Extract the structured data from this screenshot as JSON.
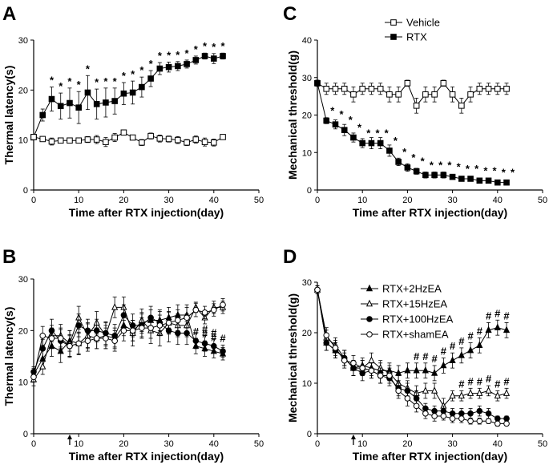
{
  "chart_data": [
    {
      "panel": "A",
      "type": "line",
      "xlabel": "Time after RTX injection(day)",
      "ylabel": "Thermal latency(s)",
      "xlim": [
        0,
        50
      ],
      "ylim": [
        0,
        30
      ],
      "xticks": [
        0,
        10,
        20,
        30,
        40,
        50
      ],
      "yticks": [
        0,
        10,
        20,
        30
      ],
      "legend": null,
      "arrow_at": null,
      "x": [
        0,
        2,
        4,
        6,
        8,
        10,
        12,
        14,
        16,
        18,
        20,
        22,
        24,
        26,
        28,
        30,
        32,
        34,
        36,
        38,
        40,
        42
      ],
      "series": [
        {
          "name": "RTX",
          "marker": "filled-square",
          "values": [
            10.6,
            15.0,
            18.2,
            16.8,
            17.4,
            16.5,
            19.5,
            17.2,
            17.5,
            17.8,
            19.3,
            19.5,
            20.6,
            22.3,
            24.3,
            24.6,
            24.8,
            25.2,
            26.0,
            26.8,
            26.3,
            26.8
          ],
          "errors": [
            0.5,
            1.2,
            2.4,
            2.6,
            3.0,
            3.2,
            3.4,
            3.0,
            2.9,
            2.6,
            2.2,
            2.3,
            2.0,
            1.6,
            1.2,
            1.0,
            0.9,
            0.8,
            0.8,
            0.6,
            1.0,
            0.6
          ]
        },
        {
          "name": "Vehicle",
          "marker": "open-square",
          "values": [
            10.6,
            10.2,
            9.7,
            9.9,
            9.9,
            9.9,
            10.1,
            10.1,
            9.6,
            10.5,
            11.5,
            10.5,
            9.5,
            10.8,
            10.3,
            10.2,
            10.0,
            9.5,
            10.1,
            9.6,
            9.5,
            10.6
          ],
          "errors": [
            0.4,
            0.5,
            0.7,
            0.5,
            0.5,
            0.4,
            0.6,
            0.8,
            0.9,
            0.8,
            0.5,
            0.5,
            0.6,
            0.6,
            0.7,
            0.6,
            0.7,
            0.6,
            0.7,
            0.8,
            0.7,
            0.5
          ]
        }
      ],
      "annotations": [
        {
          "symbol": "*",
          "series": "RTX",
          "x": [
            4,
            6,
            8,
            10,
            12,
            14,
            16,
            18,
            20,
            22,
            24,
            26,
            28,
            30,
            32,
            34,
            36,
            38,
            40,
            42
          ]
        }
      ]
    },
    {
      "panel": "B",
      "type": "line",
      "xlabel": "Time after RTX injection(day)",
      "ylabel": "Thermal latency(s)",
      "xlim": [
        0,
        50
      ],
      "ylim": [
        0,
        30
      ],
      "xticks": [
        0,
        10,
        20,
        30,
        40,
        50
      ],
      "yticks": [
        0,
        10,
        20,
        30
      ],
      "legend": null,
      "arrow_at": 8,
      "x": [
        0,
        2,
        4,
        6,
        8,
        10,
        12,
        14,
        16,
        18,
        20,
        22,
        24,
        26,
        28,
        30,
        32,
        34,
        36,
        38,
        40,
        42
      ],
      "series": [
        {
          "name": "RTX+2HzEA",
          "marker": "filled-triangle",
          "values": [
            11.5,
            14.5,
            17.0,
            16.0,
            18.0,
            17.5,
            19.0,
            18.5,
            19.0,
            18.5,
            21.0,
            20.0,
            21.5,
            22.0,
            22.0,
            22.5,
            23.0,
            23.0,
            17.0,
            16.5,
            16.0,
            15.5
          ],
          "errors": [
            1.2,
            1.8,
            2.0,
            2.2,
            2.0,
            2.2,
            2.3,
            2.0,
            2.0,
            2.0,
            2.0,
            2.0,
            2.0,
            2.0,
            2.0,
            2.0,
            2.0,
            2.0,
            1.5,
            1.5,
            1.3,
            1.2
          ]
        },
        {
          "name": "RTX+15HzEA",
          "marker": "open-triangle",
          "values": [
            10.5,
            13.0,
            19.0,
            19.0,
            17.5,
            22.5,
            19.0,
            21.5,
            19.0,
            24.5,
            24.5,
            19.5,
            22.0,
            20.0,
            19.5,
            21.5,
            21.0,
            21.0,
            24.5,
            22.5,
            24.5,
            24.5
          ],
          "errors": [
            1.2,
            1.5,
            2.0,
            2.2,
            2.5,
            2.2,
            2.5,
            2.2,
            2.5,
            2.0,
            2.0,
            2.5,
            2.2,
            2.5,
            2.5,
            2.2,
            2.2,
            2.2,
            1.0,
            1.2,
            1.2,
            1.2
          ]
        },
        {
          "name": "RTX+100HzEA",
          "marker": "filled-circle",
          "values": [
            12.0,
            16.5,
            20.0,
            18.0,
            17.0,
            21.0,
            20.0,
            20.0,
            19.5,
            19.0,
            23.0,
            21.0,
            21.0,
            22.5,
            21.5,
            20.0,
            19.5,
            19.5,
            18.0,
            17.5,
            17.0,
            16.0
          ],
          "errors": [
            1.0,
            1.8,
            2.2,
            2.2,
            2.2,
            2.2,
            2.2,
            2.2,
            2.2,
            2.2,
            2.0,
            2.2,
            2.2,
            2.2,
            2.2,
            2.2,
            2.2,
            2.2,
            1.5,
            1.5,
            1.3,
            1.2
          ]
        },
        {
          "name": "RTX+shamEA",
          "marker": "open-circle",
          "values": [
            11.0,
            19.0,
            18.5,
            18.5,
            17.0,
            17.5,
            18.0,
            18.5,
            18.5,
            18.0,
            20.0,
            20.0,
            20.5,
            20.5,
            21.0,
            21.5,
            22.0,
            22.5,
            24.0,
            23.5,
            24.0,
            25.0
          ],
          "errors": [
            1.0,
            1.8,
            2.0,
            2.0,
            2.0,
            2.0,
            2.0,
            2.0,
            2.0,
            2.0,
            2.0,
            2.0,
            2.0,
            2.0,
            2.0,
            2.0,
            2.0,
            2.0,
            1.3,
            1.2,
            1.2,
            1.2
          ]
        }
      ],
      "annotations": [
        {
          "symbol": "#",
          "series": "RTX+100HzEA",
          "x": [
            38,
            40,
            42
          ]
        },
        {
          "symbol": "#",
          "series": "RTX+2HzEA",
          "x": [
            36,
            38,
            40
          ]
        }
      ]
    },
    {
      "panel": "C",
      "type": "line",
      "xlabel": "Time after RTX injection(day)",
      "ylabel": "Mechanical threshold(g)",
      "xlim": [
        0,
        50
      ],
      "ylim": [
        0,
        40
      ],
      "xticks": [
        0,
        10,
        20,
        30,
        40,
        50
      ],
      "yticks": [
        0,
        10,
        20,
        30,
        40
      ],
      "legend": {
        "position": "top-center",
        "entries": [
          "Vehicle",
          "RTX"
        ]
      },
      "arrow_at": null,
      "x": [
        0,
        2,
        4,
        6,
        8,
        10,
        12,
        14,
        16,
        18,
        20,
        22,
        24,
        26,
        28,
        30,
        32,
        34,
        36,
        38,
        40,
        42
      ],
      "series": [
        {
          "name": "Vehicle",
          "marker": "open-square",
          "values": [
            28.5,
            27.0,
            27.0,
            27.0,
            25.5,
            27.0,
            27.0,
            27.0,
            25.5,
            25.5,
            28.5,
            22.5,
            25.5,
            25.5,
            28.5,
            25.5,
            22.5,
            25.5,
            27.0,
            27.0,
            27.0,
            27.0
          ],
          "errors": [
            0.8,
            1.5,
            1.5,
            1.5,
            2.0,
            1.5,
            1.5,
            1.5,
            2.0,
            2.0,
            0.8,
            2.0,
            2.0,
            2.0,
            0.8,
            2.0,
            2.0,
            2.0,
            1.5,
            1.5,
            1.5,
            1.5
          ]
        },
        {
          "name": "RTX",
          "marker": "filled-square",
          "values": [
            28.5,
            18.5,
            17.5,
            16.0,
            14.0,
            12.5,
            12.5,
            12.5,
            10.5,
            7.5,
            6.0,
            5.0,
            4.0,
            4.0,
            4.0,
            3.5,
            3.0,
            3.0,
            2.5,
            2.5,
            2.0,
            2.0
          ],
          "errors": [
            0.8,
            0.8,
            1.2,
            1.5,
            1.2,
            1.2,
            1.5,
            1.5,
            1.5,
            1.0,
            1.0,
            0.8,
            0.8,
            0.8,
            0.8,
            0.6,
            0.6,
            0.5,
            0.5,
            0.5,
            0.4,
            0.4
          ]
        }
      ],
      "annotations": [
        {
          "symbol": "*",
          "series": "RTX",
          "x": [
            2,
            4,
            6,
            8,
            10,
            12,
            14,
            16,
            18,
            20,
            22,
            24,
            26,
            28,
            30,
            32,
            34,
            36,
            38,
            40,
            42
          ]
        }
      ]
    },
    {
      "panel": "D",
      "type": "line",
      "xlabel": "Time after RTX injection(day)",
      "ylabel": "Mechanical threshold(g)",
      "xlim": [
        0,
        50
      ],
      "ylim": [
        0,
        30
      ],
      "xticks": [
        0,
        10,
        20,
        30,
        40,
        50
      ],
      "yticks": [
        0,
        10,
        20,
        30
      ],
      "legend": {
        "position": "top-right",
        "entries": [
          "RTX+2HzEA",
          "RTX+15HzEA",
          "RTX+100HzEA",
          "RTX+shamEA"
        ]
      },
      "arrow_at": 8,
      "x": [
        0,
        2,
        4,
        6,
        8,
        10,
        12,
        14,
        16,
        18,
        20,
        22,
        24,
        26,
        28,
        30,
        32,
        34,
        36,
        38,
        40,
        42
      ],
      "series": [
        {
          "name": "RTX+2HzEA",
          "marker": "filled-triangle",
          "values": [
            28.5,
            18.0,
            16.5,
            15.0,
            13.0,
            13.5,
            13.0,
            12.5,
            12.5,
            12.0,
            12.5,
            12.5,
            12.5,
            12.0,
            13.5,
            14.5,
            15.5,
            16.5,
            17.5,
            20.5,
            21.0,
            20.5
          ],
          "errors": [
            0.8,
            1.5,
            1.5,
            1.5,
            1.5,
            1.5,
            1.5,
            1.5,
            1.5,
            1.5,
            1.5,
            1.5,
            1.5,
            1.5,
            1.5,
            1.5,
            1.5,
            1.5,
            1.5,
            1.5,
            1.5,
            1.5
          ]
        },
        {
          "name": "RTX+15HzEA",
          "marker": "open-triangle",
          "values": [
            28.5,
            19.0,
            17.5,
            15.0,
            13.0,
            13.0,
            14.5,
            13.0,
            12.0,
            10.0,
            9.0,
            8.0,
            8.5,
            8.5,
            5.5,
            7.5,
            7.5,
            8.0,
            8.0,
            8.5,
            7.5,
            8.0
          ],
          "errors": [
            0.8,
            1.5,
            1.5,
            1.5,
            1.5,
            1.5,
            1.5,
            1.5,
            1.5,
            1.5,
            1.5,
            1.5,
            1.5,
            1.5,
            1.5,
            1.0,
            1.0,
            1.0,
            1.0,
            1.0,
            1.0,
            1.0
          ]
        },
        {
          "name": "RTX+100HzEA",
          "marker": "filled-circle",
          "values": [
            28.5,
            18.0,
            16.5,
            15.0,
            13.0,
            12.0,
            12.5,
            11.5,
            11.0,
            9.0,
            8.5,
            7.0,
            5.0,
            4.5,
            4.5,
            4.0,
            4.0,
            4.0,
            4.5,
            4.0,
            3.0,
            3.0
          ],
          "errors": [
            0.8,
            1.5,
            1.5,
            1.5,
            1.5,
            1.5,
            1.5,
            1.5,
            1.5,
            1.5,
            1.5,
            1.5,
            1.0,
            1.0,
            1.0,
            1.0,
            1.0,
            1.0,
            1.0,
            1.0,
            0.5,
            0.5
          ]
        },
        {
          "name": "RTX+shamEA",
          "marker": "open-circle",
          "values": [
            28.5,
            19.5,
            17.0,
            14.5,
            14.0,
            13.0,
            12.5,
            11.5,
            11.5,
            8.5,
            7.0,
            5.5,
            4.0,
            3.5,
            3.5,
            3.0,
            3.0,
            2.5,
            2.5,
            2.5,
            2.0,
            2.0
          ],
          "errors": [
            0.8,
            1.5,
            1.5,
            1.5,
            1.5,
            1.5,
            1.5,
            1.5,
            1.5,
            1.5,
            1.5,
            1.2,
            1.0,
            1.0,
            0.8,
            0.8,
            0.8,
            0.6,
            0.6,
            0.5,
            0.5,
            0.4
          ]
        }
      ],
      "annotations": [
        {
          "symbol": "#",
          "series": "RTX+2HzEA",
          "x": [
            22,
            24,
            26,
            28,
            30,
            32,
            34,
            36,
            38,
            40,
            42
          ]
        },
        {
          "symbol": "#",
          "series": "RTX+15HzEA",
          "x": [
            32,
            34,
            36,
            38,
            40,
            42
          ]
        }
      ]
    }
  ]
}
